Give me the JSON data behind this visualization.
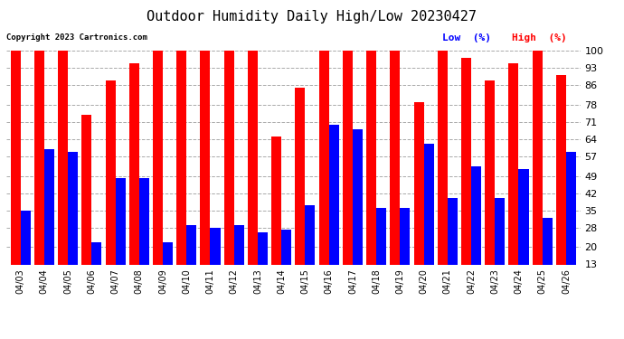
{
  "title": "Outdoor Humidity Daily High/Low 20230427",
  "copyright": "Copyright 2023 Cartronics.com",
  "legend_low": "Low  (%)",
  "legend_high": "High  (%)",
  "dates": [
    "04/03",
    "04/04",
    "04/05",
    "04/06",
    "04/07",
    "04/08",
    "04/09",
    "04/10",
    "04/11",
    "04/12",
    "04/13",
    "04/14",
    "04/15",
    "04/16",
    "04/17",
    "04/18",
    "04/19",
    "04/20",
    "04/21",
    "04/22",
    "04/23",
    "04/24",
    "04/25",
    "04/26"
  ],
  "high_values": [
    100,
    100,
    100,
    74,
    88,
    95,
    100,
    100,
    100,
    100,
    100,
    65,
    85,
    100,
    100,
    100,
    100,
    79,
    100,
    97,
    88,
    95,
    100,
    90
  ],
  "low_values": [
    35,
    60,
    59,
    22,
    48,
    48,
    22,
    29,
    28,
    29,
    26,
    27,
    37,
    70,
    68,
    36,
    36,
    62,
    40,
    53,
    40,
    52,
    32,
    59
  ],
  "ymin": 13,
  "ymax": 100,
  "yticks": [
    13,
    20,
    28,
    35,
    42,
    49,
    57,
    64,
    71,
    78,
    86,
    93,
    100
  ],
  "bar_color_high": "#ff0000",
  "bar_color_low": "#0000ff",
  "background_color": "#ffffff",
  "grid_color": "#aaaaaa",
  "title_color": "#000000",
  "legend_low_color": "#0000ff",
  "legend_high_color": "#ff0000",
  "copyright_color": "#000000"
}
